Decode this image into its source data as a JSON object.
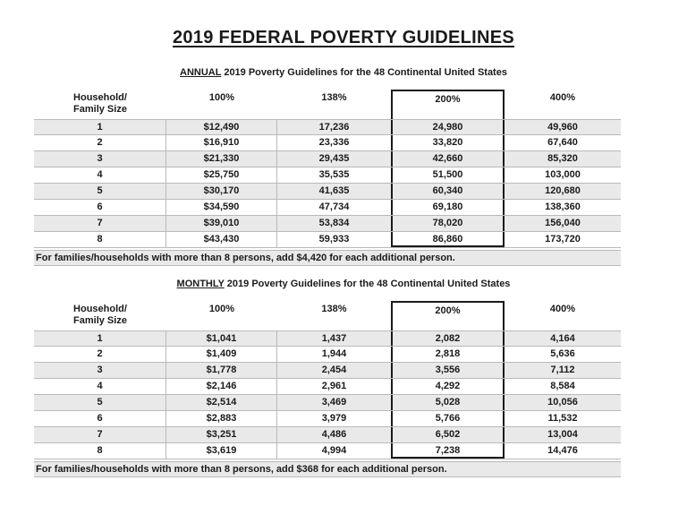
{
  "title": "2019 FEDERAL POVERTY GUIDELINES",
  "columns": {
    "household_line1": "Household/",
    "household_line2": "Family Size",
    "pct": [
      "100%",
      "138%",
      "200%",
      "400%"
    ]
  },
  "colors": {
    "row_shade": "#e9e9e9",
    "grid_line": "#b9b9b9",
    "highlight_box_border": "#1a1a1a",
    "text": "#1a1a1a"
  },
  "annual": {
    "subtitle_word": "ANNUAL",
    "subtitle_rest": " 2019 Poverty Guidelines for the 48 Continental United States",
    "rows": [
      {
        "size": "1",
        "p100": "$12,490",
        "p138": "17,236",
        "p200": "24,980",
        "p400": "49,960"
      },
      {
        "size": "2",
        "p100": "$16,910",
        "p138": "23,336",
        "p200": "33,820",
        "p400": "67,640"
      },
      {
        "size": "3",
        "p100": "$21,330",
        "p138": "29,435",
        "p200": "42,660",
        "p400": "85,320"
      },
      {
        "size": "4",
        "p100": "$25,750",
        "p138": "35,535",
        "p200": "51,500",
        "p400": "103,000"
      },
      {
        "size": "5",
        "p100": "$30,170",
        "p138": "41,635",
        "p200": "60,340",
        "p400": "120,680"
      },
      {
        "size": "6",
        "p100": "$34,590",
        "p138": "47,734",
        "p200": "69,180",
        "p400": "138,360"
      },
      {
        "size": "7",
        "p100": "$39,010",
        "p138": "53,834",
        "p200": "78,020",
        "p400": "156,040"
      },
      {
        "size": "8",
        "p100": "$43,430",
        "p138": "59,933",
        "p200": "86,860",
        "p400": "173,720"
      }
    ],
    "footnote": "For families/households with more than 8 persons, add $4,420 for each additional person."
  },
  "monthly": {
    "subtitle_word": "MONTHLY",
    "subtitle_rest": " 2019 Poverty Guidelines for the 48 Continental United States",
    "rows": [
      {
        "size": "1",
        "p100": "$1,041",
        "p138": "1,437",
        "p200": "2,082",
        "p400": "4,164"
      },
      {
        "size": "2",
        "p100": "$1,409",
        "p138": "1,944",
        "p200": "2,818",
        "p400": "5,636"
      },
      {
        "size": "3",
        "p100": "$1,778",
        "p138": "2,454",
        "p200": "3,556",
        "p400": "7,112"
      },
      {
        "size": "4",
        "p100": "$2,146",
        "p138": "2,961",
        "p200": "4,292",
        "p400": "8,584"
      },
      {
        "size": "5",
        "p100": "$2,514",
        "p138": "3,469",
        "p200": "5,028",
        "p400": "10,056"
      },
      {
        "size": "6",
        "p100": "$2,883",
        "p138": "3,979",
        "p200": "5,766",
        "p400": "11,532"
      },
      {
        "size": "7",
        "p100": "$3,251",
        "p138": "4,486",
        "p200": "6,502",
        "p400": "13,004"
      },
      {
        "size": "8",
        "p100": "$3,619",
        "p138": "4,994",
        "p200": "7,238",
        "p400": "14,476"
      }
    ],
    "footnote": "For families/households with more than 8 persons, add $368 for each additional person."
  }
}
